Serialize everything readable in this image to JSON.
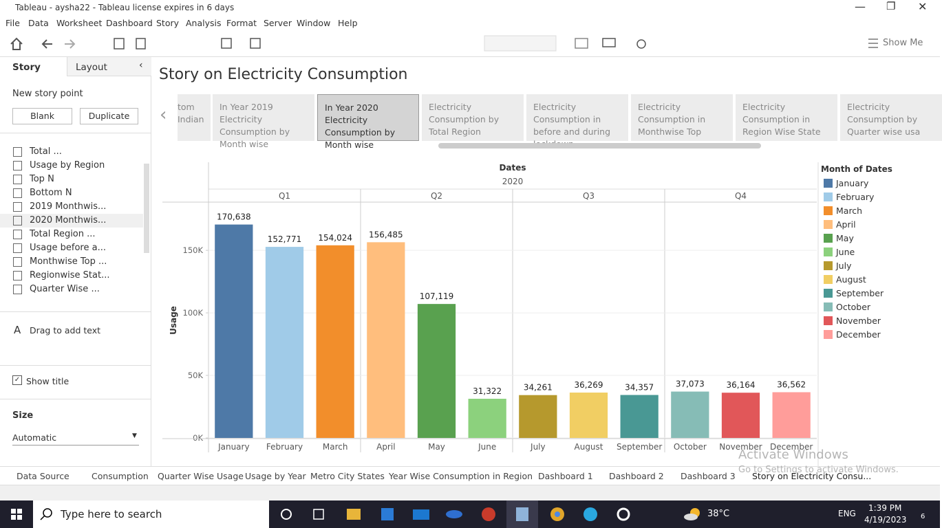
{
  "window": {
    "title": "Tableau - aysha22 - Tableau license expires in 6 days"
  },
  "menu": [
    "File",
    "Data",
    "Worksheet",
    "Dashboard",
    "Story",
    "Analysis",
    "Format",
    "Server",
    "Window",
    "Help"
  ],
  "toolbar": {
    "show_me": "Show Me"
  },
  "side_panel": {
    "tabs": [
      "Story",
      "Layout"
    ],
    "new_story_point": "New story point",
    "buttons": [
      "Blank",
      "Duplicate"
    ],
    "sheets": [
      "Total ...",
      "Usage by Region",
      "Top N",
      "Bottom  N",
      "2019 Monthwis...",
      "2020 Monthwis...",
      "Total Region ...",
      "Usage before a...",
      "Monthwise Top ...",
      "Regionwise Stat...",
      "Quarter Wise ..."
    ],
    "drag_text": "Drag to add text",
    "show_title": "Show title",
    "size_label": "Size",
    "size_value": "Automatic"
  },
  "story": {
    "title": "Story on Electricity Consumption",
    "points": [
      "tom Indian",
      "In Year 2019 Electricity Consumption by Month wise",
      "In Year 2020 Electricity Consumption by Month wise",
      "Electricity Consumption by Total Region",
      "Electricity Consumption in before and during lockdown",
      "Electricity Consumption in Monthwise Top",
      "Electricity Consumption in Region Wise State",
      "Electricity Consumption by Quarter wise usa"
    ]
  },
  "chart_data": {
    "type": "bar",
    "header": "Dates",
    "year": "2020",
    "quarters": [
      "Q1",
      "Q2",
      "Q3",
      "Q4"
    ],
    "y_label": "Usage",
    "categories": [
      "January",
      "February",
      "March",
      "April",
      "May",
      "June",
      "July",
      "August",
      "September",
      "October",
      "November",
      "December"
    ],
    "values": [
      170638,
      152771,
      154024,
      156485,
      107119,
      31322,
      34261,
      36269,
      34357,
      37073,
      36164,
      36562
    ],
    "value_labels": [
      "170,638",
      "152,771",
      "154,024",
      "156,485",
      "107,119",
      "31,322",
      "34,261",
      "36,269",
      "34,357",
      "37,073",
      "36,164",
      "36,562"
    ],
    "colors": [
      "#4e79a7",
      "#a0cbe8",
      "#f28e2b",
      "#ffbe7d",
      "#59a14f",
      "#8cd17d",
      "#b6992d",
      "#f1ce63",
      "#499894",
      "#86bcb6",
      "#e15759",
      "#ff9d9a"
    ],
    "ylim": [
      0,
      188000
    ],
    "yticks": [
      {
        "value": 0,
        "label": "0K"
      },
      {
        "value": 50000,
        "label": "50K"
      },
      {
        "value": 100000,
        "label": "100K"
      },
      {
        "value": 150000,
        "label": "150K"
      }
    ],
    "grid": true,
    "legend_title": "Month of Dates",
    "legend": "right"
  },
  "tabs": [
    "Data Source",
    "Consumption",
    "Quarter Wise Usage",
    "Usage by Year",
    "Metro City States",
    "Year Wise Consumption in Region",
    "Dashboard 1",
    "Dashboard 2",
    "Dashboard 3",
    "Story on Electricity Consu..."
  ],
  "watermark": [
    "Activate Windows",
    "Go to Settings to activate Windows."
  ],
  "taskbar": {
    "search": "Type here to search",
    "temperature": "38°C",
    "language": "ENG",
    "time": "1:39 PM",
    "date": "4/19/2023",
    "notifications": "6"
  }
}
